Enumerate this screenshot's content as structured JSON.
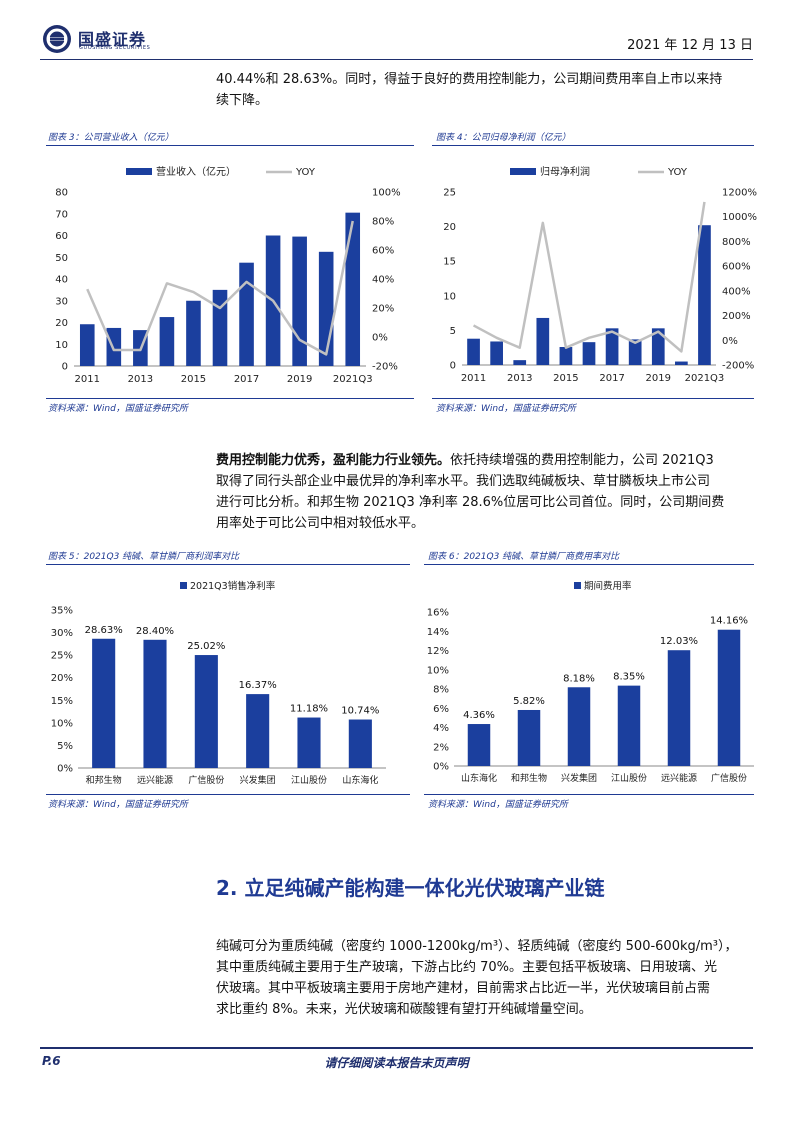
{
  "header": {
    "logo_cn": "国盛证券",
    "logo_en": "GUOSHENG SECURITIES",
    "date": "2021 年 12 月 13 日"
  },
  "intro": {
    "line1": "40.44%和 28.63%。同时，得益于良好的费用控制能力，公司期间费用率自上市以来持",
    "line2": "续下降。"
  },
  "fig3": {
    "title": "图表 3：公司营业收入（亿元）",
    "source": "资料来源：Wind，国盛证券研究所"
  },
  "fig4": {
    "title": "图表 4：公司归母净利润（亿元）",
    "source": "资料来源：Wind，国盛证券研究所"
  },
  "para2": {
    "bold": "费用控制能力优秀，盈利能力行业领先。",
    "line1_rest": "依托持续增强的费用控制能力，公司 2021Q3",
    "line2": "取得了同行头部企业中最优异的净利率水平。我们选取纯碱板块、草甘膦板块上市公司",
    "line3": "进行可比分析。和邦生物 2021Q3 净利率 28.6%位居可比公司首位。同时，公司期间费",
    "line4": "用率处于可比公司中相对较低水平。"
  },
  "fig5": {
    "title": "图表 5：2021Q3 纯碱、草甘膦厂商利润率对比",
    "source": "资料来源：Wind，国盛证券研究所"
  },
  "fig6": {
    "title": "图表 6：2021Q3 纯碱、草甘膦厂商费用率对比",
    "source": "资料来源：Wind，国盛证券研究所"
  },
  "section": {
    "title": "2. 立足纯碱产能构建一体化光伏玻璃产业链"
  },
  "para3": {
    "line1": "纯碱可分为重质纯碱（密度约 1000-1200kg/m³）、轻质纯碱（密度约 500-600kg/m³），",
    "line2": "其中重质纯碱主要用于生产玻璃，下游占比约 70%。主要包括平板玻璃、日用玻璃、光",
    "line3": "伏玻璃。其中平板玻璃主要用于房地产建材，目前需求占比近一半，光伏玻璃目前占需",
    "line4": "求比重约 8%。未来，光伏玻璃和碳酸锂有望打开纯碱增量空间。"
  },
  "footer": {
    "page": "P.6",
    "note": "请仔细阅读本报告末页声明"
  },
  "colors": {
    "bar": "#1b3f9e",
    "line": "#c0c0c0",
    "brand": "#1f2f6e"
  },
  "chart_data": [
    {
      "type": "bar",
      "x": [
        "2011",
        "2012",
        "2013",
        "2014",
        "2015",
        "2016",
        "2017",
        "2018",
        "2019",
        "2020",
        "2021Q3"
      ],
      "x_tick_labels": [
        "2011",
        "2013",
        "2015",
        "2017",
        "2019",
        "2021Q3"
      ],
      "series": [
        {
          "name": "营业收入（亿元）",
          "type": "bar",
          "axis": "left",
          "values": [
            19.2,
            17.5,
            16.5,
            22.5,
            30.0,
            35.0,
            47.5,
            60.0,
            59.5,
            52.5,
            70.5
          ]
        },
        {
          "name": "YOY",
          "type": "line",
          "axis": "right",
          "values": [
            33,
            -9,
            -9,
            37,
            31,
            20,
            38,
            25,
            -2,
            -12,
            80
          ]
        }
      ],
      "ylim_left": [
        0,
        80
      ],
      "yticks_left": [
        0,
        10,
        20,
        30,
        40,
        50,
        60,
        70,
        80
      ],
      "ylim_right": [
        -20,
        100
      ],
      "yticks_right": [
        "-20%",
        "0%",
        "20%",
        "40%",
        "60%",
        "80%",
        "100%"
      ],
      "legend": "top"
    },
    {
      "type": "bar",
      "x": [
        "2011",
        "2012",
        "2013",
        "2014",
        "2015",
        "2016",
        "2017",
        "2018",
        "2019",
        "2020",
        "2021Q3"
      ],
      "x_tick_labels": [
        "2011",
        "2013",
        "2015",
        "2017",
        "2019",
        "2021Q3"
      ],
      "series": [
        {
          "name": "归母净利润",
          "type": "bar",
          "axis": "left",
          "values": [
            3.8,
            3.4,
            0.7,
            6.8,
            2.6,
            3.3,
            5.3,
            3.7,
            5.3,
            0.5,
            20.2
          ]
        },
        {
          "name": "YOY",
          "type": "line",
          "axis": "right",
          "values": [
            120,
            20,
            -60,
            950,
            -60,
            20,
            70,
            -20,
            70,
            -90,
            1120
          ]
        }
      ],
      "ylim_left": [
        0,
        25
      ],
      "yticks_left": [
        0,
        5,
        10,
        15,
        20,
        25
      ],
      "ylim_right": [
        -200,
        1200
      ],
      "yticks_right": [
        "-200%",
        "0%",
        "200%",
        "400%",
        "600%",
        "800%",
        "1000%",
        "1200%"
      ],
      "legend": "top"
    },
    {
      "type": "bar",
      "categories": [
        "和邦生物",
        "远兴能源",
        "广信股份",
        "兴发集团",
        "江山股份",
        "山东海化"
      ],
      "series": [
        {
          "name": "2021Q3销售净利率",
          "values": [
            28.63,
            28.4,
            25.02,
            16.37,
            11.18,
            10.74
          ]
        }
      ],
      "data_labels": [
        "28.63%",
        "28.40%",
        "25.02%",
        "16.37%",
        "11.18%",
        "10.74%"
      ],
      "ylim": [
        0,
        35
      ],
      "yticks": [
        "0%",
        "5%",
        "10%",
        "15%",
        "20%",
        "25%",
        "30%",
        "35%"
      ],
      "legend": "top-left"
    },
    {
      "type": "bar",
      "categories": [
        "山东海化",
        "和邦生物",
        "兴发集团",
        "江山股份",
        "远兴能源",
        "广信股份"
      ],
      "series": [
        {
          "name": "期间费用率",
          "values": [
            4.36,
            5.82,
            8.18,
            8.35,
            12.03,
            14.16
          ]
        }
      ],
      "data_labels": [
        "4.36%",
        "5.82%",
        "8.18%",
        "8.35%",
        "12.03%",
        "14.16%"
      ],
      "ylim": [
        0,
        16
      ],
      "yticks": [
        "0%",
        "2%",
        "4%",
        "6%",
        "8%",
        "10%",
        "12%",
        "14%",
        "16%"
      ],
      "legend": "top-left"
    }
  ]
}
